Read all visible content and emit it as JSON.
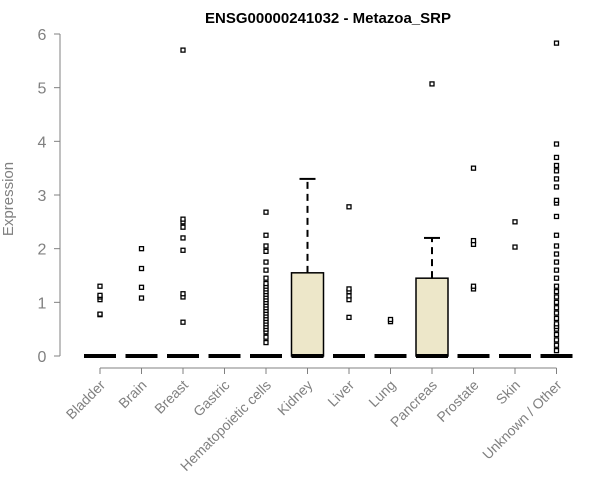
{
  "chart_data": {
    "type": "box",
    "title": "ENSG00000241032 - Metazoa_SRP",
    "xlabel": "",
    "ylabel": "Expression",
    "ylim": [
      0,
      6
    ],
    "yticks": [
      0,
      1,
      2,
      3,
      4,
      5,
      6
    ],
    "grid": false,
    "legend": "none",
    "box_fill": "#ede7c9",
    "categories": [
      "Bladder",
      "Brain",
      "Breast",
      "Gastric",
      "Hematopoietic cells",
      "Kidney",
      "Liver",
      "Lung",
      "Pancreas",
      "Prostate",
      "Skin",
      "Unknown / Other"
    ],
    "boxes": [
      {
        "q1": 0,
        "median": 0,
        "q3": 0,
        "whisker_low": 0,
        "whisker_high": 0,
        "outliers": [
          0.77,
          0.78,
          1.05,
          1.1,
          1.13,
          1.3
        ]
      },
      {
        "q1": 0,
        "median": 0,
        "q3": 0,
        "whisker_low": 0,
        "whisker_high": 0,
        "outliers": [
          1.08,
          1.28,
          1.63,
          2.0
        ]
      },
      {
        "q1": 0,
        "median": 0,
        "q3": 0,
        "whisker_low": 0,
        "whisker_high": 0,
        "outliers": [
          0.63,
          1.1,
          1.16,
          1.97,
          2.2,
          2.4,
          2.5,
          2.55,
          5.7
        ]
      },
      {
        "q1": 0,
        "median": 0,
        "q3": 0,
        "whisker_low": 0,
        "whisker_high": 0,
        "outliers": []
      },
      {
        "q1": 0,
        "median": 0,
        "q3": 0,
        "whisker_low": 0,
        "whisker_high": 0,
        "outliers": [
          0.25,
          0.35,
          0.45,
          0.5,
          0.55,
          0.6,
          0.65,
          0.7,
          0.75,
          0.8,
          0.85,
          0.9,
          0.95,
          1.0,
          1.05,
          1.1,
          1.15,
          1.2,
          1.25,
          1.3,
          1.35,
          1.45,
          1.6,
          1.75,
          1.95,
          2.05,
          2.25,
          2.68
        ]
      },
      {
        "q1": 0,
        "median": 0,
        "q3": 1.55,
        "whisker_low": 0,
        "whisker_high": 3.3,
        "outliers": []
      },
      {
        "q1": 0,
        "median": 0,
        "q3": 0,
        "whisker_low": 0,
        "whisker_high": 0,
        "outliers": [
          0.72,
          1.05,
          1.12,
          1.2,
          1.25,
          2.78
        ]
      },
      {
        "q1": 0,
        "median": 0,
        "q3": 0,
        "whisker_low": 0,
        "whisker_high": 0,
        "outliers": [
          0.64,
          0.68
        ]
      },
      {
        "q1": 0,
        "median": 0,
        "q3": 1.45,
        "whisker_low": 0,
        "whisker_high": 2.2,
        "outliers": [
          5.07
        ]
      },
      {
        "q1": 0,
        "median": 0,
        "q3": 0,
        "whisker_low": 0,
        "whisker_high": 0,
        "outliers": [
          1.25,
          1.3,
          2.08,
          2.15,
          3.5
        ]
      },
      {
        "q1": 0,
        "median": 0,
        "q3": 0,
        "whisker_low": 0,
        "whisker_high": 0,
        "outliers": [
          2.03,
          2.5
        ]
      },
      {
        "q1": 0,
        "median": 0,
        "q3": 0,
        "whisker_low": 0,
        "whisker_high": 0,
        "outliers": [
          0.1,
          0.2,
          0.3,
          0.4,
          0.5,
          0.55,
          0.6,
          0.7,
          0.8,
          0.9,
          1.0,
          1.1,
          1.2,
          1.3,
          1.45,
          1.6,
          1.75,
          1.9,
          2.05,
          2.25,
          2.6,
          2.85,
          2.9,
          3.15,
          3.3,
          3.45,
          3.55,
          3.7,
          3.95,
          5.83
        ]
      }
    ]
  }
}
